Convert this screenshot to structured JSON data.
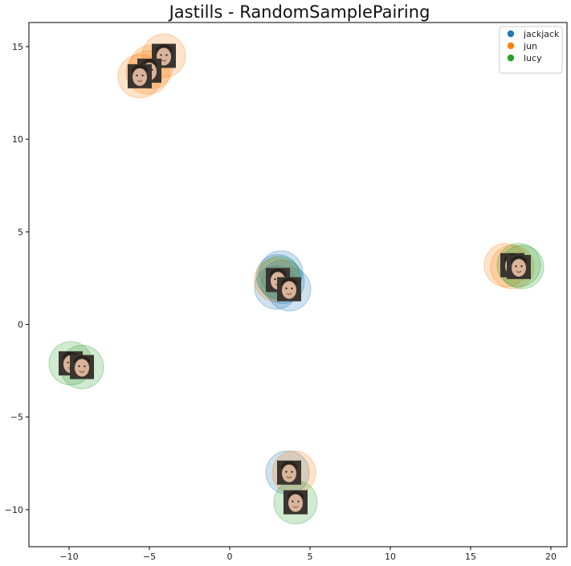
{
  "chart_data": {
    "type": "scatter",
    "title": "Jastills - RandomSamplePairing",
    "xlabel": "",
    "ylabel": "",
    "xlim": [
      -12.5,
      21
    ],
    "ylim": [
      -12,
      16.3
    ],
    "xticks": [
      -10,
      -5,
      0,
      5,
      10,
      15,
      20
    ],
    "yticks": [
      -10,
      -5,
      0,
      5,
      10,
      15
    ],
    "grid": false,
    "legend_position": "top-right",
    "series": [
      {
        "name": "jackjack",
        "color": "#1f77b4",
        "points": [
          {
            "x": 3.0,
            "y": 2.6
          },
          {
            "x": 3.3,
            "y": 2.3
          },
          {
            "x": 2.9,
            "y": 2.0
          },
          {
            "x": 3.7,
            "y": 1.9
          },
          {
            "x": 3.2,
            "y": 2.8
          },
          {
            "x": 3.6,
            "y": -8.0
          }
        ]
      },
      {
        "name": "jun",
        "color": "#ff7f0e",
        "points": [
          {
            "x": -4.1,
            "y": 14.5
          },
          {
            "x": -5.1,
            "y": 13.6
          },
          {
            "x": -5.6,
            "y": 13.4
          },
          {
            "x": -4.9,
            "y": 13.9
          },
          {
            "x": 17.2,
            "y": 3.2
          },
          {
            "x": 17.6,
            "y": 3.1
          },
          {
            "x": 4.0,
            "y": -8.0
          },
          {
            "x": 2.9,
            "y": 2.4
          }
        ]
      },
      {
        "name": "lucy",
        "color": "#2ca02c",
        "points": [
          {
            "x": -9.9,
            "y": -2.1
          },
          {
            "x": -9.2,
            "y": -2.3
          },
          {
            "x": 18.0,
            "y": 3.2
          },
          {
            "x": 18.2,
            "y": 3.1
          },
          {
            "x": 4.1,
            "y": -9.6
          },
          {
            "x": 3.1,
            "y": 2.5
          }
        ]
      }
    ],
    "thumbnails": [
      {
        "x": -4.1,
        "y": 14.5
      },
      {
        "x": -5.0,
        "y": 13.7
      },
      {
        "x": -5.6,
        "y": 13.4
      },
      {
        "x": 3.0,
        "y": 2.4
      },
      {
        "x": 3.7,
        "y": 1.9
      },
      {
        "x": 17.6,
        "y": 3.2
      },
      {
        "x": 18.0,
        "y": 3.1
      },
      {
        "x": -9.9,
        "y": -2.1
      },
      {
        "x": -9.2,
        "y": -2.3
      },
      {
        "x": 3.7,
        "y": -8.0
      },
      {
        "x": 4.1,
        "y": -9.6
      }
    ]
  }
}
